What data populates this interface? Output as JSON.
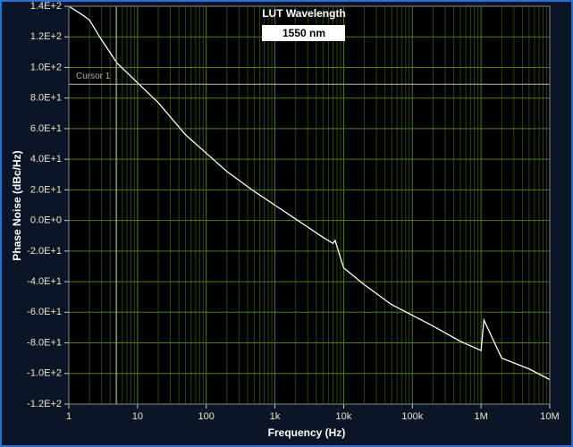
{
  "chart_data": {
    "type": "line",
    "title": "LUT Wavelength",
    "subtitle": "1550 nm",
    "x_label": "Frequency (Hz)",
    "y_label": "Phase Noise (dBc/Hz)",
    "x_scale": "log",
    "grid": true,
    "xlim": [
      1,
      10000000
    ],
    "ylim": [
      -120,
      140
    ],
    "xticks": [
      1,
      10,
      100,
      {
        "value": 1000,
        "label": "1k"
      },
      {
        "value": 10000,
        "label": "10k"
      },
      {
        "value": 100000,
        "label": "100k"
      },
      {
        "value": 1000000,
        "label": "1M"
      },
      {
        "value": 10000000,
        "label": "10M"
      }
    ],
    "yticks": [
      {
        "value": -120,
        "label": "-1.2E+2"
      },
      {
        "value": -100,
        "label": "-1.0E+2"
      },
      {
        "value": -80,
        "label": "-8.0E+1"
      },
      {
        "value": -60,
        "label": "-6.0E+1"
      },
      {
        "value": -40,
        "label": "-4.0E+1"
      },
      {
        "value": -20,
        "label": "-2.0E+1"
      },
      {
        "value": 0,
        "label": "0.0E+0"
      },
      {
        "value": 20,
        "label": "2.0E+1"
      },
      {
        "value": 40,
        "label": "4.0E+1"
      },
      {
        "value": 60,
        "label": "6.0E+1"
      },
      {
        "value": 80,
        "label": "8.0E+1"
      },
      {
        "value": 100,
        "label": "1.0E+2"
      },
      {
        "value": 120,
        "label": "1.2E+2"
      },
      {
        "value": 140,
        "label": "1.4E+2"
      }
    ],
    "cursor": {
      "label": "Cursor 1",
      "x": 4.9,
      "y": 89
    },
    "x": [
      1,
      1.5,
      2,
      3,
      5,
      10,
      20,
      50,
      100,
      200,
      500,
      1000,
      2000,
      5000,
      7000,
      7500,
      10000,
      20000,
      50000,
      100000,
      200000,
      500000,
      1000000,
      1100000,
      2000000,
      5000000,
      10000000
    ],
    "series": [
      {
        "name": "Phase Noise",
        "color": "#ffffff",
        "values": [
          140,
          135,
          131,
          118,
          103,
          90,
          77,
          56,
          44,
          32,
          19,
          10,
          1,
          -11,
          -15,
          -13,
          -31,
          -42,
          -55,
          -62,
          -69,
          -79,
          -85,
          -65,
          -90,
          -97,
          -104
        ]
      }
    ]
  }
}
